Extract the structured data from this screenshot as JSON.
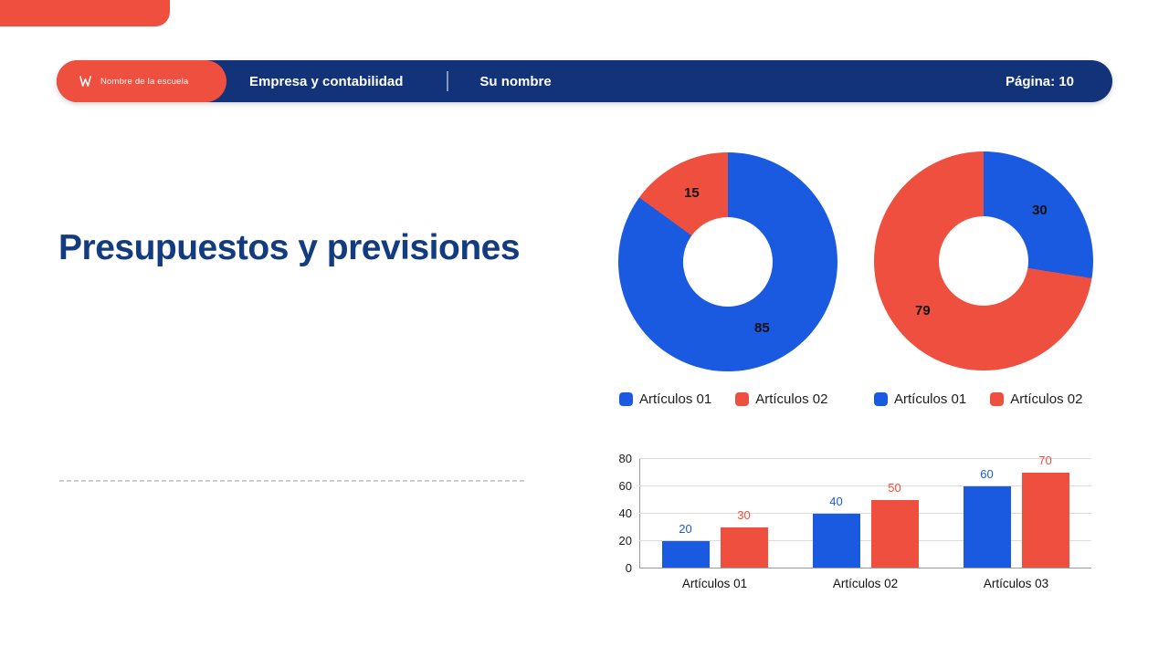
{
  "header": {
    "school_name": "Nombre de la escuela",
    "subject": "Empresa y contabilidad",
    "author": "Su nombre",
    "page": "Página: 10"
  },
  "title": "Presupuestos y previsiones",
  "colors": {
    "red": "#EF4F3F",
    "blue": "#1A5AE0",
    "header_navy": "#12337A",
    "title_navy": "#133B80"
  },
  "chart_data": [
    {
      "type": "pie",
      "subtype": "donut",
      "labels": [
        "Artículos 01",
        "Artículos 02"
      ],
      "values": [
        85,
        15
      ],
      "colors": [
        "#1A5AE0",
        "#EF4F3F"
      ],
      "start_angle": "top, clockwise",
      "data_labels_shown": true,
      "legend_position": "bottom"
    },
    {
      "type": "pie",
      "subtype": "donut",
      "labels": [
        "Artículos 01",
        "Artículos 02"
      ],
      "values": [
        30,
        79
      ],
      "colors": [
        "#1A5AE0",
        "#EF4F3F"
      ],
      "start_angle": "top, clockwise",
      "data_labels_shown": true,
      "legend_position": "bottom"
    },
    {
      "type": "bar",
      "categories": [
        "Artículos 01",
        "Artículos 02",
        "Artículos 03"
      ],
      "series": [
        {
          "color": "#1A5AE0",
          "values": [
            20,
            40,
            60
          ]
        },
        {
          "color": "#EF4F3F",
          "values": [
            30,
            50,
            70
          ]
        }
      ],
      "ylim": [
        0,
        80
      ],
      "yticks": [
        0,
        20,
        40,
        60,
        80
      ],
      "grid": true,
      "legend": "none",
      "data_labels_shown": true
    }
  ]
}
